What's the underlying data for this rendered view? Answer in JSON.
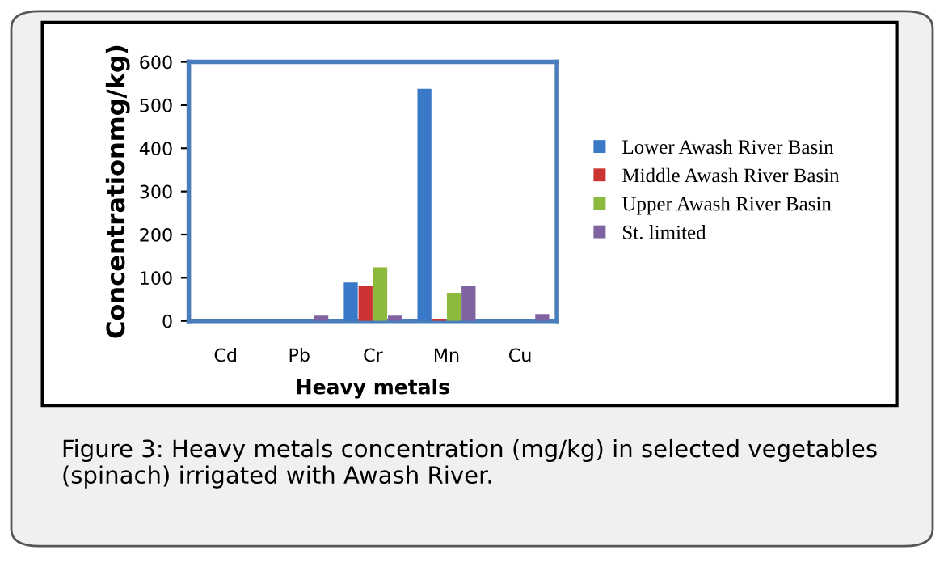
{
  "chart_data": {
    "type": "bar",
    "xlabel": "Heavy metals",
    "ylabel": "Concentrationmg/kg)",
    "categories": [
      "Cd",
      "Pb",
      "Cr",
      "Mn",
      "Cu"
    ],
    "series": [
      {
        "name": "Lower Awash River Basin",
        "color": "#3a78c8",
        "values": [
          0,
          0,
          89,
          538,
          0
        ]
      },
      {
        "name": "Middle Awash River Basin",
        "color": "#cc3333",
        "values": [
          0,
          0,
          80,
          5,
          0
        ]
      },
      {
        "name": "Upper Awash River Basin",
        "color": "#8cba3c",
        "values": [
          0,
          0,
          124,
          65,
          0
        ]
      },
      {
        "name": "St. limited",
        "color": "#8064a2",
        "values": [
          0,
          12,
          12,
          80,
          16
        ]
      }
    ],
    "ylim": [
      0,
      600
    ],
    "yticks": [
      0,
      100,
      200,
      300,
      400,
      500,
      600
    ],
    "grid": false,
    "legend": "right",
    "annotations": [
      "Figure 3: Heavy metals concentration (mg/kg) in selected vegetables (spinach) irrigated with Awash River."
    ]
  }
}
